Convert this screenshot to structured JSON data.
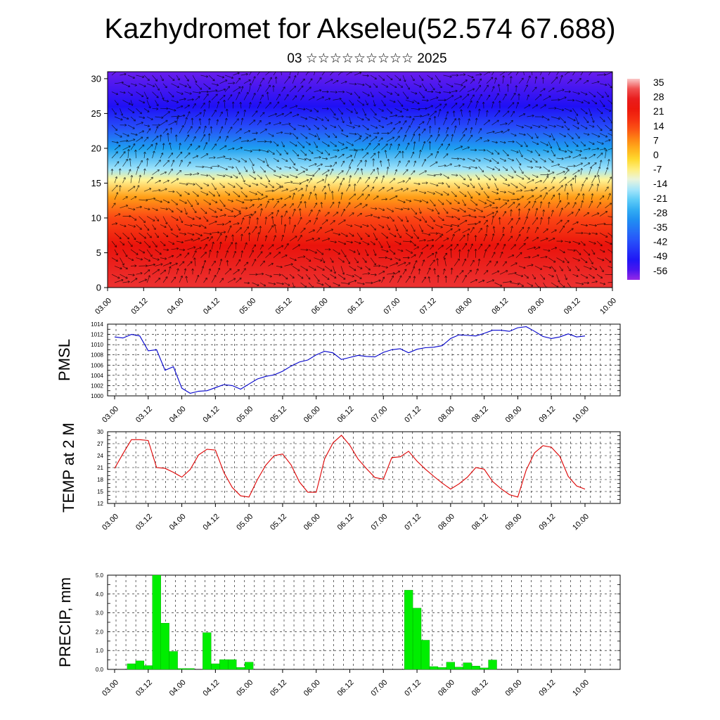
{
  "title": "Kazhydromet for Akseleu(52.574 67.688)",
  "subtitle": "03 ☆☆☆☆☆☆☆☆☆ 2025",
  "colors": {
    "pmsl_line": "#0000cc",
    "temp_line": "#dd0000",
    "precip_bar": "#00ee00",
    "precip_bar_edge": "#009900",
    "arrows": "#000000"
  },
  "chart_data": [
    {
      "type": "heatmap",
      "name": "cross-section",
      "x_tick_labels": [
        "03.00",
        "03.12",
        "04.00",
        "04.12",
        "05.00",
        "05.12",
        "06.00",
        "06.12",
        "07.00",
        "07.12",
        "08.00",
        "08.12",
        "09.00",
        "09.12",
        "10.00"
      ],
      "y_ticks": [
        0,
        5,
        10,
        15,
        20,
        25,
        30
      ],
      "ylim": [
        0,
        31
      ],
      "colorbar_labels": [
        "35",
        "28",
        "21",
        "14",
        "7",
        "0",
        "-7",
        "-14",
        "-21",
        "-28",
        "-35",
        "-42",
        "-49",
        "-56"
      ],
      "colorbar_range": [
        -63,
        38
      ],
      "vertical_profile": [
        {
          "level": 0,
          "value": 30
        },
        {
          "level": 6,
          "value": 24
        },
        {
          "level": 10,
          "value": 14
        },
        {
          "level": 13,
          "value": 5
        },
        {
          "level": 15.5,
          "value": -9
        },
        {
          "level": 17,
          "value": -18
        },
        {
          "level": 20,
          "value": -30
        },
        {
          "level": 23,
          "value": -44
        },
        {
          "level": 26,
          "value": -54
        },
        {
          "level": 31,
          "value": -60
        }
      ],
      "wind_arrows": true
    },
    {
      "type": "line",
      "name": "pmsl",
      "ylabel": "PMSL",
      "x_tick_labels": [
        "03.00",
        "03.12",
        "04.00",
        "04.12",
        "05.00",
        "05.12",
        "06.00",
        "06.12",
        "07.00",
        "07.12",
        "08.00",
        "08.12",
        "09.00",
        "09.12",
        "10.00"
      ],
      "y_ticks": [
        1000,
        1002,
        1004,
        1006,
        1008,
        1010,
        1012,
        1014
      ],
      "ylim": [
        1000,
        1014
      ],
      "values": [
        1011.5,
        1011.3,
        1012.0,
        1011.7,
        1008.8,
        1009.0,
        1005.0,
        1005.7,
        1001.5,
        1000.5,
        1000.9,
        1001.0,
        1001.6,
        1002.2,
        1002.0,
        1001.3,
        1002.3,
        1003.3,
        1003.8,
        1004.1,
        1004.8,
        1005.8,
        1006.6,
        1007.0,
        1008.0,
        1008.7,
        1008.4,
        1007.1,
        1007.5,
        1007.9,
        1007.7,
        1007.6,
        1008.5,
        1009.0,
        1009.2,
        1008.4,
        1009.1,
        1009.4,
        1009.5,
        1009.8,
        1011.2,
        1011.9,
        1011.8,
        1011.7,
        1012.2,
        1012.8,
        1012.8,
        1012.6,
        1013.3,
        1013.5,
        1012.6,
        1011.6,
        1011.2,
        1011.5,
        1012.1,
        1011.5,
        1011.7
      ]
    },
    {
      "type": "line",
      "name": "temp",
      "ylabel": "TEMP at 2 M",
      "x_tick_labels": [
        "03.00",
        "03.12",
        "04.00",
        "04.12",
        "05.00",
        "05.12",
        "06.00",
        "06.12",
        "07.00",
        "07.12",
        "08.00",
        "08.12",
        "09.00",
        "09.12",
        "10.00"
      ],
      "y_ticks": [
        12,
        15,
        18,
        21,
        24,
        27,
        30
      ],
      "ylim": [
        12,
        30
      ],
      "values": [
        20.8,
        24.5,
        28.0,
        28.0,
        27.8,
        21.0,
        20.8,
        19.8,
        18.6,
        20.5,
        24.2,
        25.6,
        25.4,
        19.8,
        16.0,
        13.9,
        13.6,
        18.0,
        21.6,
        24.0,
        24.4,
        21.7,
        17.4,
        14.8,
        14.8,
        23.2,
        27.2,
        29.1,
        26.6,
        23.1,
        20.7,
        18.5,
        18.1,
        23.5,
        23.7,
        25.1,
        22.6,
        20.6,
        18.8,
        17.1,
        15.6,
        16.9,
        18.6,
        21.0,
        20.6,
        17.5,
        15.7,
        14.2,
        13.6,
        20.4,
        24.7,
        26.5,
        26.1,
        23.8,
        18.8,
        16.4,
        15.6
      ]
    },
    {
      "type": "bar",
      "name": "precip",
      "ylabel": "PRECIP, mm",
      "x_tick_labels": [
        "03.00",
        "03.12",
        "04.00",
        "04.12",
        "05.00",
        "05.12",
        "06.00",
        "06.12",
        "07.00",
        "07.12",
        "08.00",
        "08.12",
        "09.00",
        "09.12",
        "10.00"
      ],
      "y_tick_labels": [
        "0.0",
        "1.0",
        "2.0",
        "3.0",
        "4.0",
        "5.0"
      ],
      "ylim": [
        0,
        5
      ],
      "values": [
        0,
        0,
        0.3,
        0.45,
        0.2,
        5.0,
        2.45,
        0.95,
        0.05,
        0.05,
        0,
        1.95,
        0.3,
        0.52,
        0.52,
        0.1,
        0.38,
        0,
        0,
        0,
        0,
        0,
        0,
        0,
        0,
        0,
        0,
        0,
        0,
        0,
        0,
        0,
        0,
        0,
        0,
        4.2,
        3.25,
        1.55,
        0.15,
        0.1,
        0.38,
        0.12,
        0.35,
        0.18,
        0.08,
        0.5,
        0,
        0,
        0,
        0,
        0,
        0,
        0,
        0,
        0,
        0,
        0
      ]
    }
  ]
}
